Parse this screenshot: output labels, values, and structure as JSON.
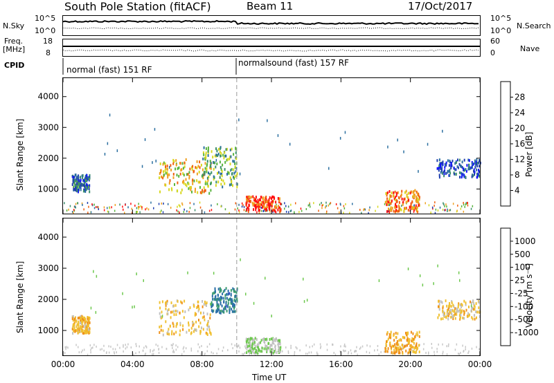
{
  "header": {
    "station": "South Pole Station (fitACF)",
    "beam": "Beam 11",
    "date": "17/Oct/2017"
  },
  "strip1": {
    "left_label": "N.Sky",
    "right_label": "N.Search",
    "left_ticks": [
      "10^5",
      "10^0"
    ],
    "right_ticks": [
      "10^5",
      "10^0"
    ]
  },
  "strip2": {
    "left_label_1": "Freq.",
    "left_label_2": "[MHz]",
    "right_label": "Nave",
    "left_ticks": [
      "18",
      "8"
    ],
    "right_ticks": [
      "60",
      "0"
    ]
  },
  "cpid": {
    "label": "CPID",
    "segment_1": "normal (fast) 151 RF",
    "segment_2": "normalsound (fast) 157 RF"
  },
  "colors": {
    "power_scale": [
      "#1010ff",
      "#2040b0",
      "#2b6fa0",
      "#3c8f6c",
      "#58b43c",
      "#d8d820",
      "#f0a020",
      "#f06010",
      "#ff1010"
    ],
    "velocity_scale": [
      "#ff1010",
      "#f06010",
      "#f09018",
      "#f0c030",
      "#c0c0c0",
      "#6cc84c",
      "#3a9a70",
      "#2c70a8",
      "#2040c0"
    ]
  },
  "chart_data": [
    {
      "type": "heatmap",
      "xlabel": "",
      "ylabel": "Slant Range [km]",
      "x_ticks": [
        "00:00",
        "04:00",
        "08:00",
        "12:00",
        "16:00",
        "20:00",
        "00:00"
      ],
      "ylim": [
        200,
        4600
      ],
      "y_ticks": [
        1000,
        2000,
        3000,
        4000
      ],
      "colorbar": {
        "label": "Power [dB]",
        "ticks": [
          "4",
          "8",
          "12",
          "16",
          "20",
          "24",
          "28"
        ],
        "range": [
          0,
          30
        ]
      },
      "echo_regions": [
        {
          "t_start": 0.5,
          "t_end": 1.5,
          "r_start": 950,
          "r_end": 1500,
          "value": 8
        },
        {
          "t_start": 5.5,
          "t_end": 8.5,
          "r_start": 900,
          "r_end": 2000,
          "value": 20
        },
        {
          "t_start": 8.0,
          "t_end": 10.0,
          "r_start": 1100,
          "r_end": 2400,
          "value": 14
        },
        {
          "t_start": 10.5,
          "t_end": 12.5,
          "r_start": 300,
          "r_end": 800,
          "value": 27
        },
        {
          "t_start": 18.5,
          "t_end": 20.5,
          "r_start": 300,
          "r_end": 1000,
          "value": 24
        },
        {
          "t_start": 21.5,
          "t_end": 24.0,
          "r_start": 1400,
          "r_end": 2000,
          "value": 6
        }
      ]
    },
    {
      "type": "heatmap",
      "xlabel": "Time UT",
      "ylabel": "Slant Range [km]",
      "x_ticks": [
        "00:00",
        "04:00",
        "08:00",
        "12:00",
        "16:00",
        "20:00",
        "00:00"
      ],
      "ylim": [
        200,
        4600
      ],
      "y_ticks": [
        1000,
        2000,
        3000,
        4000
      ],
      "colorbar": {
        "label": "Velocity [m s⁻¹]",
        "ticks": [
          "-1000",
          "-500",
          "-100",
          "-25",
          "25",
          "100",
          "500",
          "1000"
        ],
        "range": [
          -1200,
          1200
        ]
      },
      "echo_regions": [
        {
          "t_start": 0.5,
          "t_end": 1.5,
          "r_start": 950,
          "r_end": 1500,
          "value": -300
        },
        {
          "t_start": 5.5,
          "t_end": 8.5,
          "r_start": 900,
          "r_end": 2000,
          "value": -250
        },
        {
          "t_start": 8.5,
          "t_end": 10.0,
          "r_start": 1600,
          "r_end": 2400,
          "value": 700
        },
        {
          "t_start": 10.5,
          "t_end": 12.5,
          "r_start": 300,
          "r_end": 800,
          "value": 150
        },
        {
          "t_start": 18.5,
          "t_end": 20.5,
          "r_start": 300,
          "r_end": 1000,
          "value": -400
        },
        {
          "t_start": 21.5,
          "t_end": 24.0,
          "r_start": 1400,
          "r_end": 2000,
          "value": -200
        }
      ]
    }
  ]
}
